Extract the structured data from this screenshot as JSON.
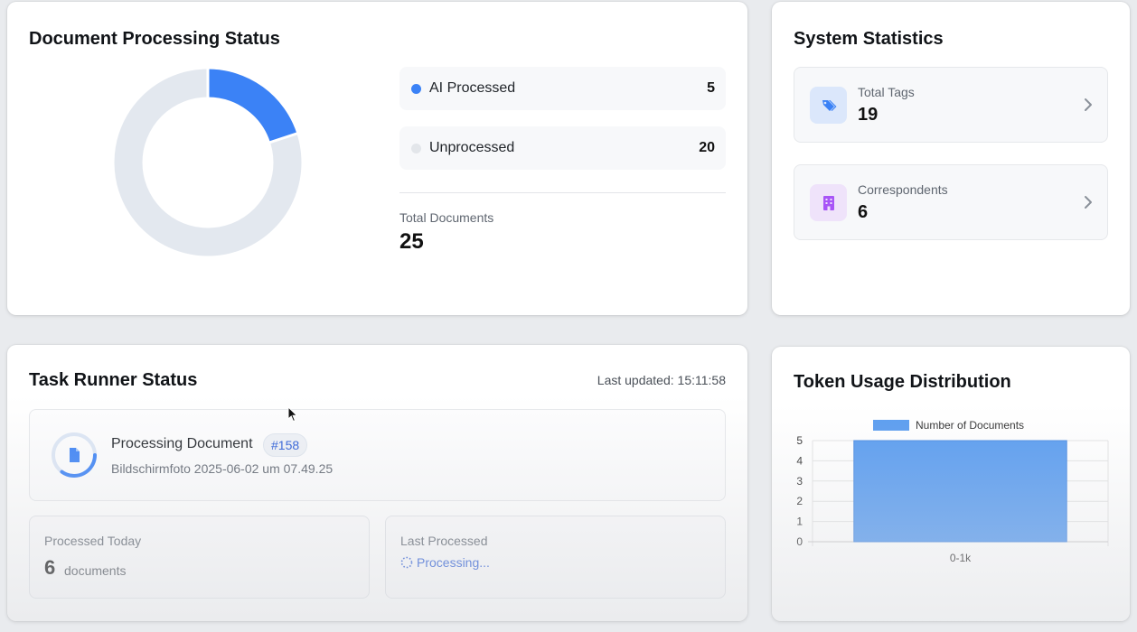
{
  "document_status": {
    "title": "Document Processing Status",
    "ai_processed": {
      "label": "AI Processed",
      "value": "5",
      "color": "#3b82f6"
    },
    "unprocessed": {
      "label": "Unprocessed",
      "value": "20",
      "color": "#e3e8ef"
    },
    "total_label": "Total Documents",
    "total_value": "25"
  },
  "system_stats": {
    "title": "System Statistics",
    "items": [
      {
        "label": "Total Tags",
        "value": "19",
        "icon": "tags-icon",
        "icon_bg": "#dbe7fb",
        "icon_color": "#3b82f6"
      },
      {
        "label": "Correspondents",
        "value": "6",
        "icon": "building-icon",
        "icon_bg": "#efe3fa",
        "icon_color": "#a855f7"
      }
    ]
  },
  "task_runner": {
    "title": "Task Runner Status",
    "last_updated": "Last updated: 15:11:58",
    "current": {
      "title": "Processing Document",
      "badge": "#158",
      "filename": "Bildschirmfoto 2025-06-02 um 07.49.25",
      "progress": 0.35
    },
    "processed_today": {
      "label": "Processed Today",
      "value": "6",
      "unit": "documents"
    },
    "last_processed": {
      "label": "Last Processed",
      "status": "Processing..."
    }
  },
  "token_usage": {
    "title": "Token Usage Distribution"
  },
  "chart_data": {
    "type": "bar",
    "title": "Token Usage Distribution",
    "categories": [
      "0-1k"
    ],
    "series": [
      {
        "name": "Number of Documents",
        "values": [
          5
        ],
        "color": "#5b9df0"
      }
    ],
    "ylim": [
      0,
      5
    ],
    "yticks": [
      0,
      1,
      2,
      3,
      4,
      5
    ],
    "grid": true,
    "legend": "top"
  }
}
